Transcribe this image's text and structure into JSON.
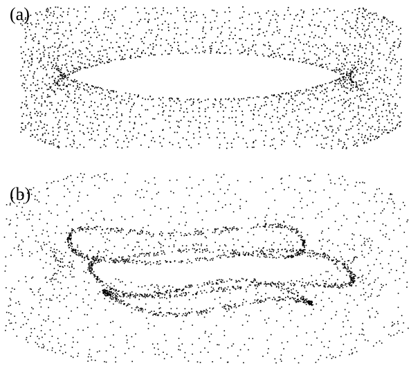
{
  "panels": [
    {
      "label": "(a)"
    },
    {
      "label": "(b)"
    }
  ],
  "colors": {
    "points": "#000000",
    "background": "#ffffff"
  }
}
